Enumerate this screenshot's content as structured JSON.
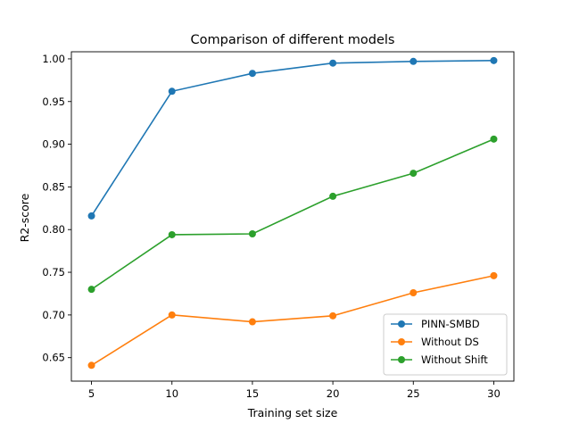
{
  "chart_data": {
    "type": "line",
    "title": "Comparison of different models",
    "xlabel": "Training set size",
    "ylabel": "R2-score",
    "x": [
      5,
      10,
      15,
      20,
      25,
      30
    ],
    "xlim": [
      3.75,
      31.25
    ],
    "ylim": [
      0.6225,
      1.0083
    ],
    "xticks": [
      5,
      10,
      15,
      20,
      25,
      30
    ],
    "yticks": [
      0.65,
      0.7,
      0.75,
      0.8,
      0.85,
      0.9,
      0.95,
      1.0
    ],
    "ytick_labels": [
      "0.65",
      "0.70",
      "0.75",
      "0.80",
      "0.85",
      "0.90",
      "0.95",
      "1.00"
    ],
    "grid": false,
    "legend_position": "lower-right",
    "series": [
      {
        "name": "PINN-SMBD",
        "color": "#1f77b4",
        "values": [
          0.816,
          0.962,
          0.983,
          0.995,
          0.997,
          0.998
        ]
      },
      {
        "name": "Without DS",
        "color": "#ff7f0e",
        "values": [
          0.641,
          0.7,
          0.692,
          0.699,
          0.726,
          0.746
        ]
      },
      {
        "name": "Without Shift",
        "color": "#2ca02c",
        "values": [
          0.73,
          0.794,
          0.795,
          0.839,
          0.866,
          0.906
        ]
      }
    ]
  }
}
